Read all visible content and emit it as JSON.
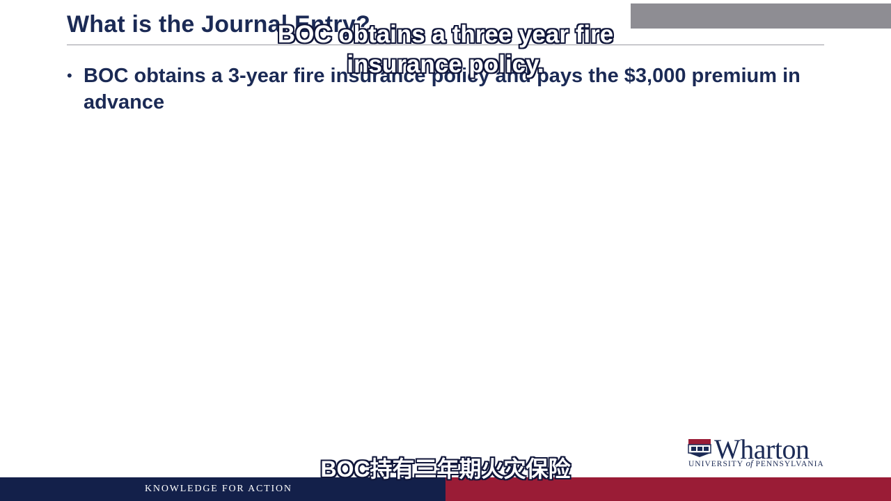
{
  "slide": {
    "title": "What is the Journal Entry?",
    "bullet_marker": "•",
    "bullet_text": "BOC obtains a 3-year fire insurance policy and pays the $3,000 premium in advance"
  },
  "subtitles": {
    "english": "BOC obtains a three year fire insurance policy.",
    "chinese": "BOC持有三年期火灾保险"
  },
  "logo": {
    "name": "Wharton",
    "university_prefix": "UNIVERSITY",
    "university_of": "of",
    "university_suffix": "PENNSYLVANIA"
  },
  "footer": {
    "tagline": "KNOWLEDGE FOR ACTION"
  },
  "colors": {
    "navy": "#1b2a55",
    "footer_navy": "#13204a",
    "footer_red": "#9a1c36",
    "gray_box": "#8e8d93"
  }
}
